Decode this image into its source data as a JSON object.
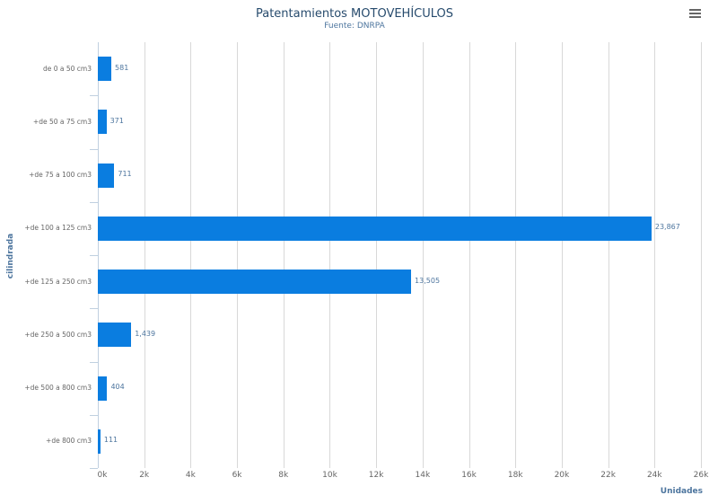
{
  "header": {
    "title": "Patentamientos MOTOVEHÍCULOS",
    "subtitle": "Fuente: DNRPA",
    "menu_icon": "hamburger-menu-icon"
  },
  "colors": {
    "bar": "#0a7de0",
    "title": "#274b6d",
    "axis_title": "#4d759e"
  },
  "chart_data": {
    "type": "bar",
    "orientation": "horizontal",
    "title": "Patentamientos MOTOVEHÍCULOS",
    "subtitle": "Fuente: DNRPA",
    "xlabel": "Unidades",
    "ylabel": "cilindrada",
    "categories": [
      "de 0 a 50 cm3",
      "+de 50 a 75 cm3",
      "+de 75 a 100 cm3",
      "+de 100 a 125 cm3",
      "+de 125 a 250 cm3",
      "+de 250 a 500 cm3",
      "+de 500 a 800 cm3",
      "+de 800 cm3"
    ],
    "values": [
      581,
      371,
      711,
      23867,
      13505,
      1439,
      404,
      111
    ],
    "value_labels": [
      "581",
      "371",
      "711",
      "23,867",
      "13,505",
      "1,439",
      "404",
      "111"
    ],
    "xlim": [
      0,
      26000
    ],
    "xticks": [
      "0k",
      "2k",
      "4k",
      "6k",
      "8k",
      "10k",
      "12k",
      "14k",
      "16k",
      "18k",
      "20k",
      "22k",
      "24k",
      "26k"
    ],
    "grid": true,
    "legend": null
  }
}
